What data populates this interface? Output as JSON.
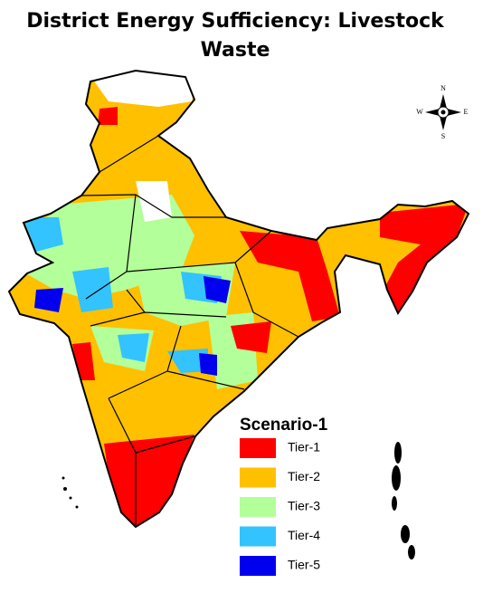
{
  "title": "District Energy Sufficiency: Livestock Waste",
  "compass": {
    "north": "N",
    "south": "S",
    "east": "E",
    "west": "W"
  },
  "legend": {
    "title": "Scenario-1",
    "items": [
      {
        "label": "Tier-1",
        "color": "#ff0000"
      },
      {
        "label": "Tier-2",
        "color": "#ffc000"
      },
      {
        "label": "Tier-3",
        "color": "#b3ff9a"
      },
      {
        "label": "Tier-4",
        "color": "#33c3ff"
      },
      {
        "label": "Tier-5",
        "color": "#0000ee"
      }
    ]
  }
}
